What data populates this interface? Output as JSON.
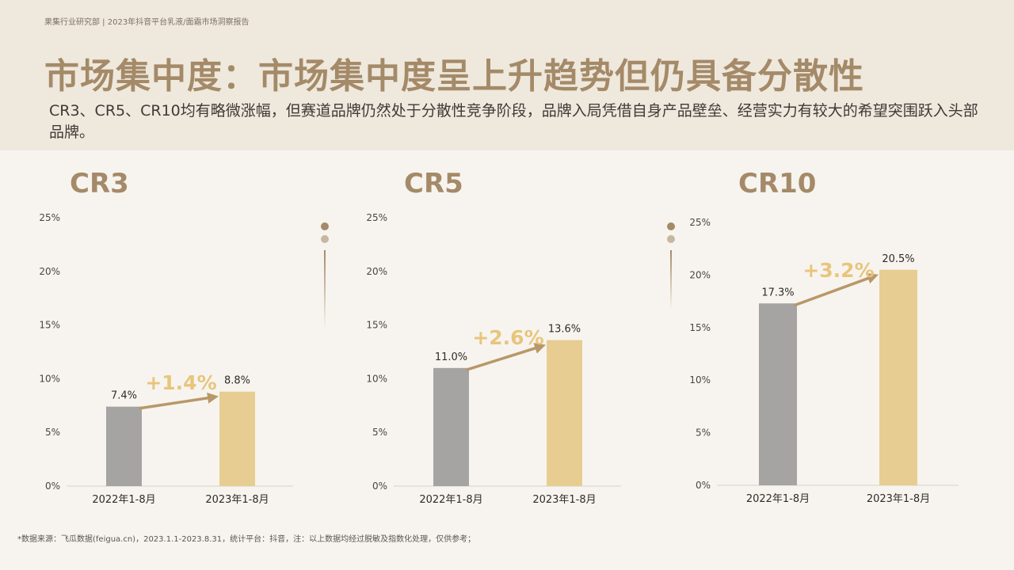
{
  "header": {
    "breadcrumb": "果集行业研究部 | 2023年抖音平台乳液/面霜市场洞察报告",
    "title": "市场集中度：市场集中度呈上升趋势但仍具备分散性",
    "subtitle": "CR3、CR5、CR10均有略微涨幅，但赛道品牌仍然处于分散性竞争阶段，品牌入局凭借自身产品壁垒、经营实力有较大的希望突围跃入头部品牌。"
  },
  "footnote": "*数据来源：飞瓜数据(feigua.cn)，2023.1.1-2023.8.31，统计平台：抖音，注：以上数据均经过脱敏及指数化处理，仅供参考；",
  "colors": {
    "accent": "#a48a68",
    "bar_2022": "#a5a4a3",
    "bar_2023": "#e8cd92",
    "growth_text": "#e8c57c",
    "arrow": "#b89868"
  },
  "chart_data": [
    {
      "type": "bar",
      "title": "CR3",
      "categories": [
        "2022年1-8月",
        "2023年1-8月"
      ],
      "values": [
        7.4,
        8.8
      ],
      "value_labels": [
        "7.4%",
        "8.8%"
      ],
      "growth_label": "+1.4%",
      "yticks": [
        "0%",
        "5%",
        "10%",
        "15%",
        "20%",
        "25%"
      ],
      "ylim": [
        0,
        25
      ]
    },
    {
      "type": "bar",
      "title": "CR5",
      "categories": [
        "2022年1-8月",
        "2023年1-8月"
      ],
      "values": [
        11.0,
        13.6
      ],
      "value_labels": [
        "11.0%",
        "13.6%"
      ],
      "growth_label": "+2.6%",
      "yticks": [
        "0%",
        "5%",
        "10%",
        "15%",
        "20%",
        "25%"
      ],
      "ylim": [
        0,
        25
      ]
    },
    {
      "type": "bar",
      "title": "CR10",
      "categories": [
        "2022年1-8月",
        "2023年1-8月"
      ],
      "values": [
        17.3,
        20.5
      ],
      "value_labels": [
        "17.3%",
        "20.5%"
      ],
      "growth_label": "+3.2%",
      "yticks": [
        "0%",
        "5%",
        "10%",
        "15%",
        "20%",
        "25%"
      ],
      "ylim": [
        0,
        25
      ]
    }
  ]
}
